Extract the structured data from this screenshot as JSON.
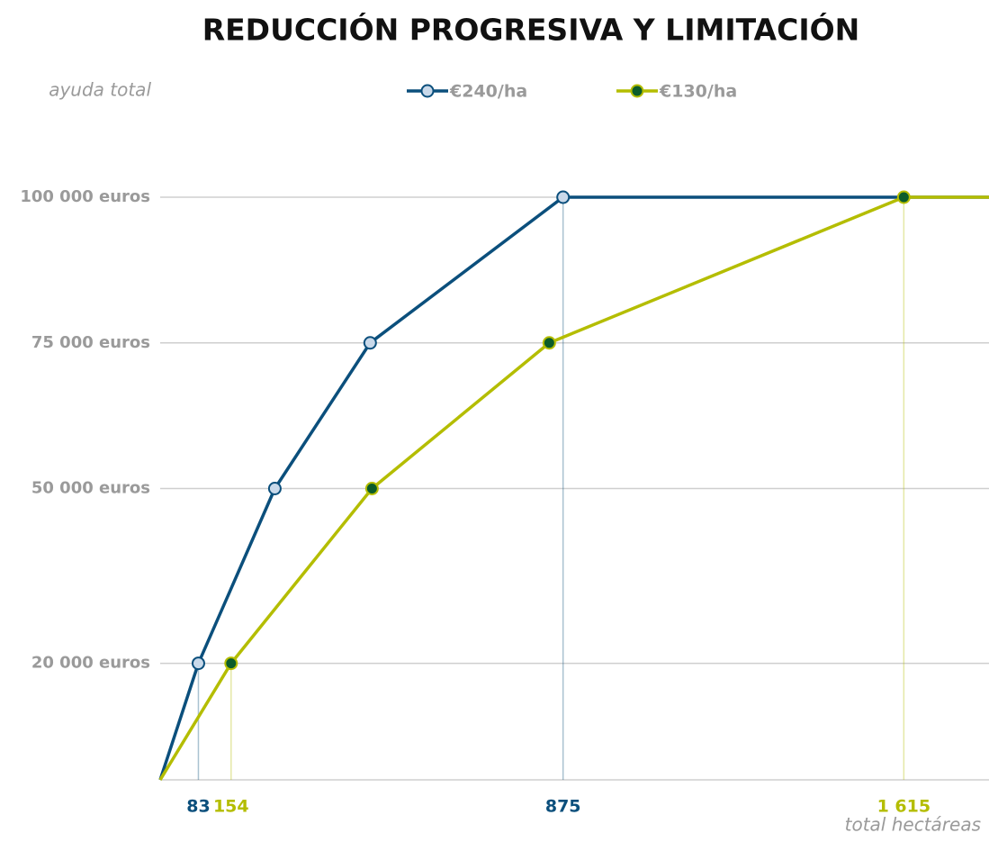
{
  "chart_data": {
    "type": "line",
    "title": "REDUCCIÓN PROGRESIVA Y LIMITACIÓN",
    "ylabel": "ayuda total",
    "xlabel": "total hectáreas",
    "xlim": [
      0,
      1800
    ],
    "ylim": [
      0,
      110000
    ],
    "yticks": [
      {
        "value": 20000,
        "label": "20 000 euros"
      },
      {
        "value": 50000,
        "label": "50 000 euros"
      },
      {
        "value": 75000,
        "label": "75 000 euros"
      },
      {
        "value": 100000,
        "label": "100 000 euros"
      }
    ],
    "grid": true,
    "legend": "top",
    "series": [
      {
        "name": "€240/ha",
        "color": "#0b4f7c",
        "marker_color": "#c9d9ea",
        "x": [
          0,
          83,
          249,
          456,
          875,
          1800
        ],
        "values": [
          0,
          20000,
          50000,
          75000,
          100000,
          100000
        ],
        "xticks": [
          83,
          875
        ]
      },
      {
        "name": "€130/ha",
        "color": "#b4bd00",
        "marker_color": "#0b5c2a",
        "x": [
          0,
          154,
          460,
          845,
          1615,
          1800
        ],
        "values": [
          0,
          20000,
          50000,
          75000,
          100000,
          100000
        ],
        "xticks": [
          154,
          {
            "value": 1615,
            "label": "1 615"
          }
        ]
      }
    ]
  }
}
